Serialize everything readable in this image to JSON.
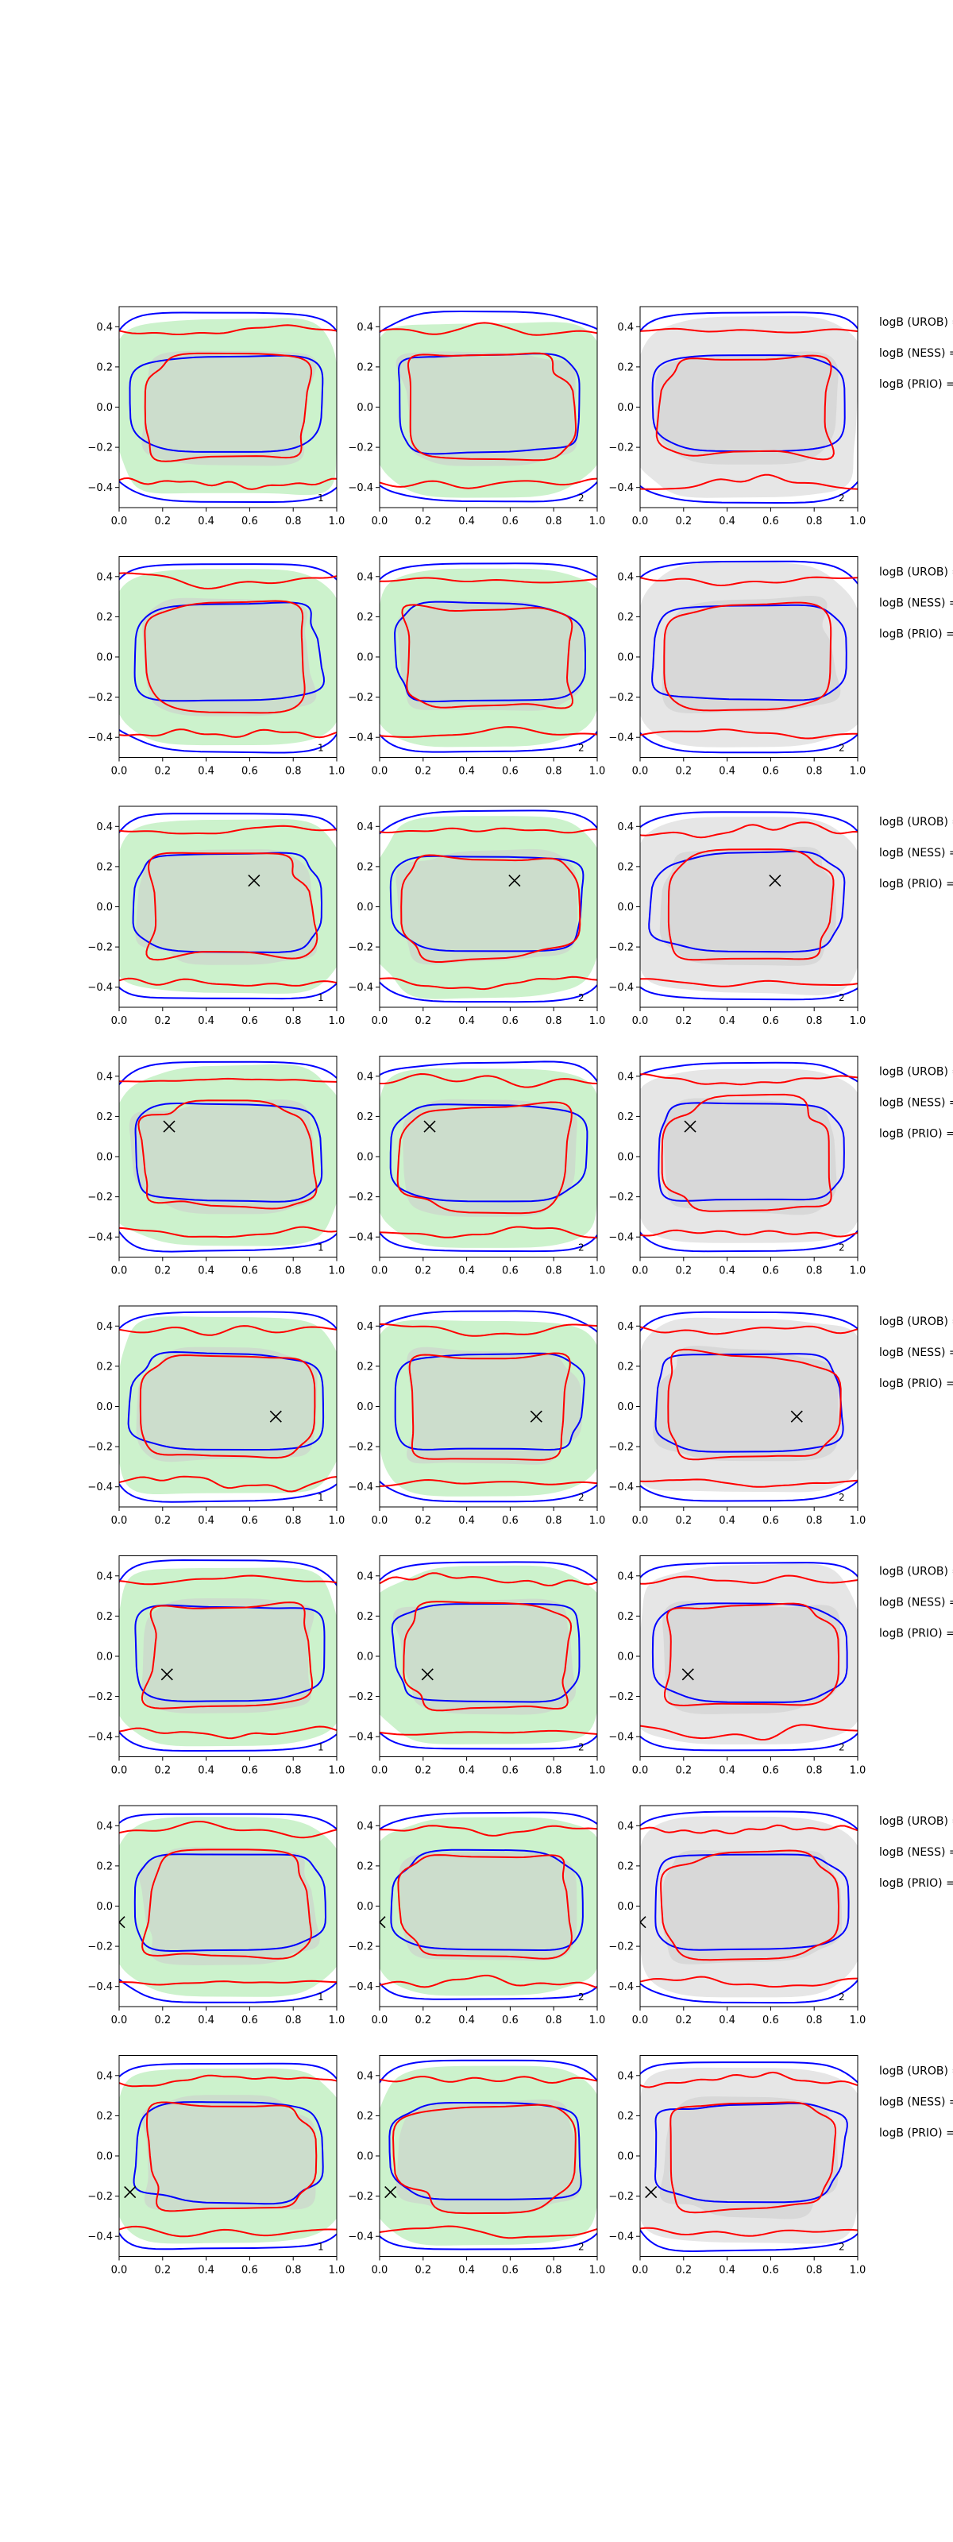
{
  "figure": {
    "rows": 8,
    "columns": 3,
    "colors": {
      "green_fill": "#ccf2cc",
      "gray_fill_light": "#e6e6e6",
      "gray_fill_dark": "#cccccc",
      "red_contour": "#ff0000",
      "blue_contour": "#0000ff",
      "marker": "#000000"
    }
  },
  "chart_data": {
    "type": "contour",
    "grid": false,
    "xlim": [
      0,
      1
    ],
    "ylim": [
      -0.5,
      0.5
    ],
    "xticks": [
      "0.0",
      "0.2",
      "0.4",
      "0.6",
      "0.8",
      "1.0"
    ],
    "yticks": [
      "0.4",
      "0.2",
      "0.0",
      "−0.2",
      "−0.4"
    ],
    "panel_ids": [
      "1",
      "2",
      "2"
    ],
    "bayes_labels": [
      "logB (UROB) =",
      "logB (NESS) =",
      "logB (PRIO) ="
    ],
    "markers": [
      null,
      null,
      {
        "x": 0.62,
        "y": 0.13
      },
      {
        "x": 0.23,
        "y": 0.15
      },
      {
        "x": 0.72,
        "y": -0.05
      },
      {
        "x": 0.22,
        "y": -0.09
      },
      {
        "x": 0.0,
        "y": -0.08
      },
      {
        "x": 0.05,
        "y": -0.18
      }
    ]
  }
}
